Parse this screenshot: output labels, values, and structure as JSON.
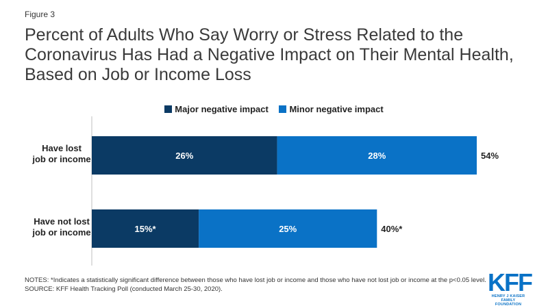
{
  "figure_label": "Figure 3",
  "title_lines": [
    "Percent of Adults Who Say Worry or Stress Related to the",
    "Coronavirus Has Had a Negative Impact on Their Mental Health,",
    "Based on Job or Income Loss"
  ],
  "notes": "NOTES: *Indicates a statistically significant difference between those who have lost job or income and those who have not lost job or income at the p<0.05 level.",
  "source": "SOURCE: KFF Health Tracking Poll (conducted March 25-30, 2020).",
  "logo": {
    "mark": "KFF",
    "line1": "HENRY J KAISER",
    "line2": "FAMILY FOUNDATION"
  },
  "chart_data": {
    "type": "bar",
    "orientation": "horizontal",
    "stacked": true,
    "categories": [
      [
        "Have lost",
        "job or income"
      ],
      [
        "Have not lost",
        "job or income"
      ]
    ],
    "series": [
      {
        "name": "Major negative impact",
        "color": "#0b3a64",
        "values": [
          26,
          15
        ],
        "labels": [
          "26%",
          "15%*"
        ]
      },
      {
        "name": "Minor negative impact",
        "color": "#0a72c6",
        "values": [
          28,
          25
        ],
        "labels": [
          "28%",
          "25%"
        ]
      }
    ],
    "totals": [
      54,
      40
    ],
    "total_labels": [
      "54%",
      "40%*"
    ],
    "xlim": [
      0,
      54
    ],
    "legend_position": "top-center",
    "grid": false
  }
}
